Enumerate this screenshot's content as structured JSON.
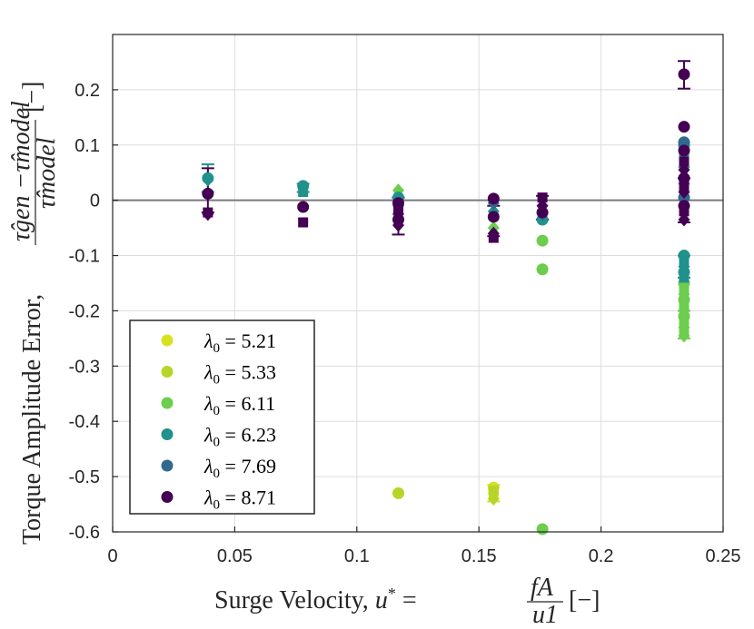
{
  "chart_data": {
    "type": "scatter",
    "title": "",
    "xlabel": "Surge Velocity, u* = fA/u1 [−]",
    "ylabel": "Torque Amplitude Error, (τgen − τmodel)/τmodel [−]",
    "xlabel_parts": {
      "main": "Surge Velocity, ",
      "sym": "u",
      "sup": "*",
      "eq": " = ",
      "num": "fA",
      "den": "u1",
      "unit": "[−]"
    },
    "ylabel_parts": {
      "main": "Torque Amplitude Error, ",
      "num": "τ̂gen −τ̂model",
      "den": "τ̂model",
      "unit": "[−]"
    },
    "xlim": [
      0,
      0.25
    ],
    "ylim": [
      -0.6,
      0.3
    ],
    "xticks": [
      0,
      0.05,
      0.1,
      0.15,
      0.2,
      0.25
    ],
    "xtick_labels": [
      "0",
      "0.05",
      "0.1",
      "0.15",
      "0.2",
      "0.25"
    ],
    "yticks": [
      -0.6,
      -0.5,
      -0.4,
      -0.3,
      -0.2,
      -0.1,
      0,
      0.1,
      0.2
    ],
    "ytick_labels": [
      "-0.6",
      "-0.5",
      "-0.4",
      "-0.3",
      "-0.2",
      "-0.1",
      "0",
      "0.1",
      "0.2"
    ],
    "grid": true,
    "reference_line": 0,
    "legend_position": "bottom-left",
    "series": [
      {
        "name": "λ0 = 5.21",
        "lambda": "5.21",
        "color": "#d9e021",
        "points": [
          [
            0.156,
            -0.52,
            "circle"
          ],
          [
            0.156,
            -0.535,
            "square"
          ],
          [
            0.156,
            -0.53,
            "diamond"
          ]
        ]
      },
      {
        "name": "λ0 = 5.33",
        "lambda": "5.33",
        "color": "#b5d629",
        "points": [
          [
            0.117,
            -0.53,
            "circle"
          ],
          [
            0.156,
            -0.525,
            "square"
          ],
          [
            0.156,
            -0.54,
            "diamond"
          ]
        ]
      },
      {
        "name": "λ0 = 6.11",
        "lambda": "6.11",
        "color": "#6ccd4e",
        "points": [
          [
            0.117,
            0.018,
            "diamond"
          ],
          [
            0.156,
            -0.05,
            "diamond"
          ],
          [
            0.176,
            -0.073,
            "circle"
          ],
          [
            0.176,
            -0.125,
            "circle"
          ],
          [
            0.176,
            -0.595,
            "circle"
          ],
          [
            0.234,
            -0.15,
            "circle"
          ],
          [
            0.234,
            -0.16,
            "square"
          ],
          [
            0.234,
            -0.17,
            "diamond"
          ],
          [
            0.234,
            -0.18,
            "circle"
          ],
          [
            0.234,
            -0.19,
            "square"
          ],
          [
            0.234,
            -0.2,
            "diamond"
          ],
          [
            0.234,
            -0.21,
            "circle"
          ],
          [
            0.234,
            -0.22,
            "square"
          ],
          [
            0.234,
            -0.23,
            "diamond"
          ],
          [
            0.234,
            -0.24,
            "square"
          ],
          [
            0.234,
            -0.245,
            "diamond"
          ]
        ]
      },
      {
        "name": "λ0 = 6.23",
        "lambda": "6.23",
        "color": "#21918c",
        "points": [
          [
            0.039,
            0.04,
            "circle"
          ],
          [
            0.039,
            0.037,
            "diamond"
          ],
          [
            0.078,
            0.026,
            "circle"
          ],
          [
            0.078,
            0.015,
            "square"
          ],
          [
            0.117,
            0.005,
            "circle"
          ],
          [
            0.156,
            -0.02,
            "diamond"
          ],
          [
            0.176,
            -0.035,
            "circle"
          ],
          [
            0.234,
            -0.1,
            "circle"
          ],
          [
            0.234,
            -0.11,
            "square"
          ],
          [
            0.234,
            -0.12,
            "diamond"
          ],
          [
            0.234,
            -0.13,
            "circle"
          ],
          [
            0.234,
            -0.14,
            "square"
          ],
          [
            0.234,
            0.1,
            "circle"
          ],
          [
            0.234,
            0.075,
            "square"
          ],
          [
            0.234,
            0.06,
            "diamond"
          ]
        ]
      },
      {
        "name": "λ0 = 7.69",
        "lambda": "7.69",
        "color": "#31688e",
        "points": [
          [
            0.117,
            -0.01,
            "diamond"
          ],
          [
            0.156,
            -0.005,
            "diamond"
          ],
          [
            0.176,
            -0.025,
            "diamond"
          ],
          [
            0.234,
            0.105,
            "circle"
          ],
          [
            0.234,
            0.03,
            "diamond"
          ],
          [
            0.234,
            0.005,
            "circle"
          ]
        ]
      },
      {
        "name": "λ0 = 8.71",
        "lambda": "8.71",
        "color": "#440154",
        "points": [
          [
            0.039,
            0.012,
            "circle"
          ],
          [
            0.039,
            -0.022,
            "square"
          ],
          [
            0.039,
            -0.025,
            "diamond"
          ],
          [
            0.078,
            -0.012,
            "circle"
          ],
          [
            0.078,
            -0.04,
            "square"
          ],
          [
            0.117,
            -0.005,
            "circle"
          ],
          [
            0.117,
            -0.015,
            "square"
          ],
          [
            0.117,
            -0.025,
            "diamond"
          ],
          [
            0.117,
            -0.035,
            "circle"
          ],
          [
            0.117,
            -0.045,
            "diamond"
          ],
          [
            0.156,
            0.003,
            "circle"
          ],
          [
            0.156,
            -0.03,
            "circle"
          ],
          [
            0.156,
            -0.06,
            "diamond"
          ],
          [
            0.156,
            -0.068,
            "square"
          ],
          [
            0.176,
            0.005,
            "square"
          ],
          [
            0.176,
            -0.022,
            "circle"
          ],
          [
            0.176,
            -0.01,
            "diamond"
          ],
          [
            0.234,
            0.228,
            "circle"
          ],
          [
            0.234,
            0.133,
            "circle"
          ],
          [
            0.234,
            0.09,
            "circle"
          ],
          [
            0.234,
            0.07,
            "square"
          ],
          [
            0.234,
            0.055,
            "diamond"
          ],
          [
            0.234,
            0.04,
            "circle"
          ],
          [
            0.234,
            0.025,
            "square"
          ],
          [
            0.234,
            0.015,
            "diamond"
          ],
          [
            0.234,
            -0.01,
            "circle"
          ],
          [
            0.234,
            -0.02,
            "square"
          ],
          [
            0.234,
            -0.035,
            "diamond"
          ]
        ]
      }
    ],
    "error_bars": [
      {
        "x": 0.039,
        "y": 0.04,
        "lo": 0.015,
        "hi": 0.065,
        "color": "#21918c"
      },
      {
        "x": 0.039,
        "y": 0.012,
        "lo": -0.022,
        "hi": 0.058,
        "color": "#440154"
      },
      {
        "x": 0.078,
        "y": 0.026,
        "lo": 0.015,
        "hi": 0.03,
        "color": "#21918c"
      },
      {
        "x": 0.117,
        "y": -0.03,
        "lo": -0.062,
        "hi": 0.005,
        "color": "#440154"
      },
      {
        "x": 0.156,
        "y": -0.04,
        "lo": -0.065,
        "hi": -0.01,
        "color": "#440154"
      },
      {
        "x": 0.156,
        "y": -0.53,
        "lo": -0.545,
        "hi": -0.515,
        "color": "#d9e021"
      },
      {
        "x": 0.176,
        "y": -0.01,
        "lo": -0.035,
        "hi": 0.008,
        "color": "#440154"
      },
      {
        "x": 0.234,
        "y": 0.228,
        "lo": 0.202,
        "hi": 0.252,
        "color": "#440154"
      },
      {
        "x": 0.234,
        "y": -0.12,
        "lo": -0.14,
        "hi": -0.1,
        "color": "#21918c"
      },
      {
        "x": 0.234,
        "y": -0.22,
        "lo": -0.25,
        "hi": -0.2,
        "color": "#6ccd4e"
      },
      {
        "x": 0.234,
        "y": 0.0,
        "lo": -0.04,
        "hi": 0.04,
        "color": "#440154"
      }
    ]
  }
}
